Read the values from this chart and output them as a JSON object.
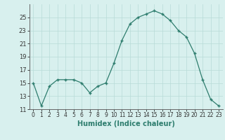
{
  "x": [
    0,
    1,
    2,
    3,
    4,
    5,
    6,
    7,
    8,
    9,
    10,
    11,
    12,
    13,
    14,
    15,
    16,
    17,
    18,
    19,
    20,
    21,
    22,
    23
  ],
  "y": [
    15,
    11.5,
    14.5,
    15.5,
    15.5,
    15.5,
    15,
    13.5,
    14.5,
    15,
    18,
    21.5,
    24,
    25,
    25.5,
    26,
    25.5,
    24.5,
    23,
    22,
    19.5,
    15.5,
    12.5,
    11.5
  ],
  "xlabel": "Humidex (Indice chaleur)",
  "ylim": [
    11,
    27
  ],
  "xlim": [
    -0.5,
    23.5
  ],
  "yticks": [
    11,
    13,
    15,
    17,
    19,
    21,
    23,
    25
  ],
  "xticks": [
    0,
    1,
    2,
    3,
    4,
    5,
    6,
    7,
    8,
    9,
    10,
    11,
    12,
    13,
    14,
    15,
    16,
    17,
    18,
    19,
    20,
    21,
    22,
    23
  ],
  "xtick_labels": [
    "0",
    "1",
    "2",
    "3",
    "4",
    "5",
    "6",
    "7",
    "8",
    "9",
    "10",
    "11",
    "12",
    "13",
    "14",
    "15",
    "16",
    "17",
    "18",
    "19",
    "20",
    "21",
    "22",
    "23"
  ],
  "line_color": "#2e7d6e",
  "bg_color": "#d8f0ee",
  "grid_color": "#b8dbd8",
  "marker": "+"
}
